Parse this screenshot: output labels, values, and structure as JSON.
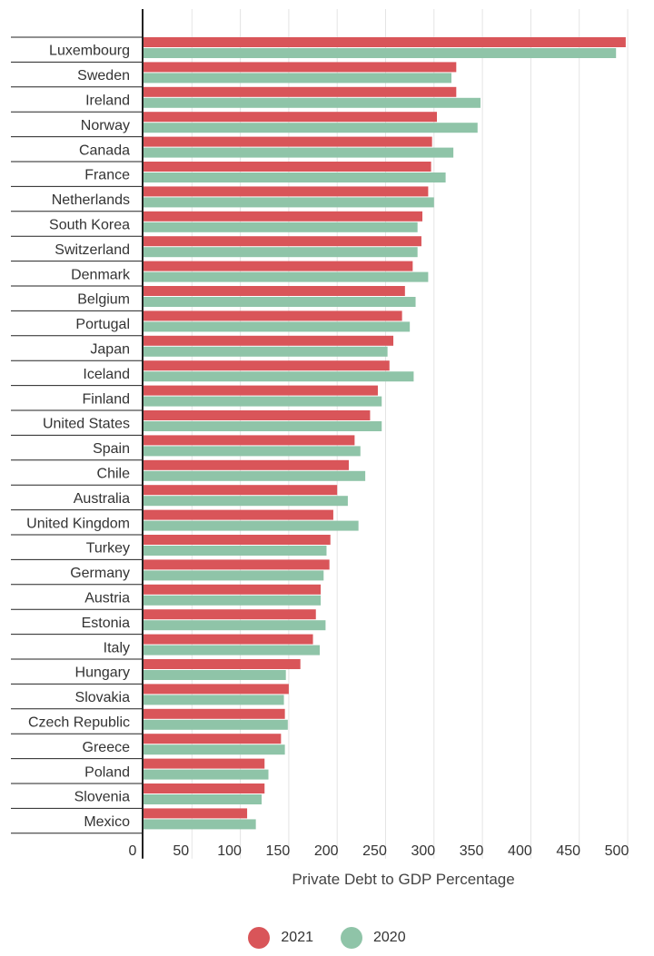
{
  "chart_data": {
    "type": "bar",
    "orientation": "horizontal",
    "title": "",
    "xlabel": "Private Debt to GDP Percentage",
    "ylabel": "",
    "xlim": [
      0,
      500
    ],
    "xticks": [
      0,
      50,
      100,
      150,
      200,
      250,
      300,
      350,
      400,
      450,
      500
    ],
    "grid": true,
    "legend_position": "bottom",
    "categories": [
      "Luxembourg",
      "Sweden",
      "Ireland",
      "Norway",
      "Canada",
      "France",
      "Netherlands",
      "South Korea",
      "Switzerland",
      "Denmark",
      "Belgium",
      "Portugal",
      "Japan",
      "Iceland",
      "Finland",
      "United States",
      "Spain",
      "Chile",
      "Australia",
      "United Kingdom",
      "Turkey",
      "Germany",
      "Austria",
      "Estonia",
      "Italy",
      "Hungary",
      "Slovakia",
      "Czech Republic",
      "Greece",
      "Poland",
      "Slovenia",
      "Mexico"
    ],
    "series": [
      {
        "name": "2021",
        "color": "#d95559",
        "values": [
          498,
          323,
          323,
          303,
          298,
          297,
          294,
          288,
          287,
          278,
          270,
          267,
          258,
          254,
          242,
          234,
          218,
          212,
          200,
          196,
          193,
          192,
          183,
          178,
          175,
          162,
          150,
          146,
          142,
          125,
          125,
          107
        ]
      },
      {
        "name": "2020",
        "color": "#8fc4a8",
        "values": [
          488,
          318,
          348,
          345,
          320,
          312,
          300,
          283,
          283,
          294,
          281,
          275,
          252,
          279,
          246,
          246,
          224,
          229,
          211,
          222,
          189,
          186,
          183,
          188,
          182,
          147,
          145,
          149,
          146,
          129,
          122,
          116
        ]
      }
    ]
  }
}
